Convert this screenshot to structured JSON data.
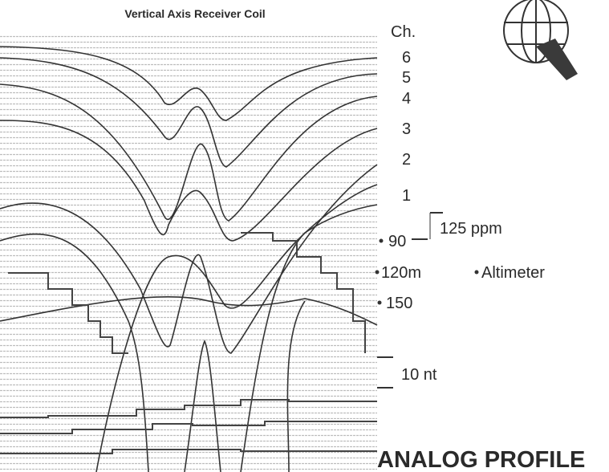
{
  "header": {
    "title": "Vertical Axis Receiver Coil"
  },
  "channels": {
    "heading": "Ch.",
    "labels": [
      "6",
      "5",
      "4",
      "3",
      "2",
      "1"
    ]
  },
  "scale": {
    "em": "125 ppm",
    "mag": "10 nt"
  },
  "altimeter": {
    "ticks": [
      "90",
      "120m",
      "150"
    ],
    "label": "Altimeter"
  },
  "footer": {
    "title": "ANALOG PROFILE"
  }
}
